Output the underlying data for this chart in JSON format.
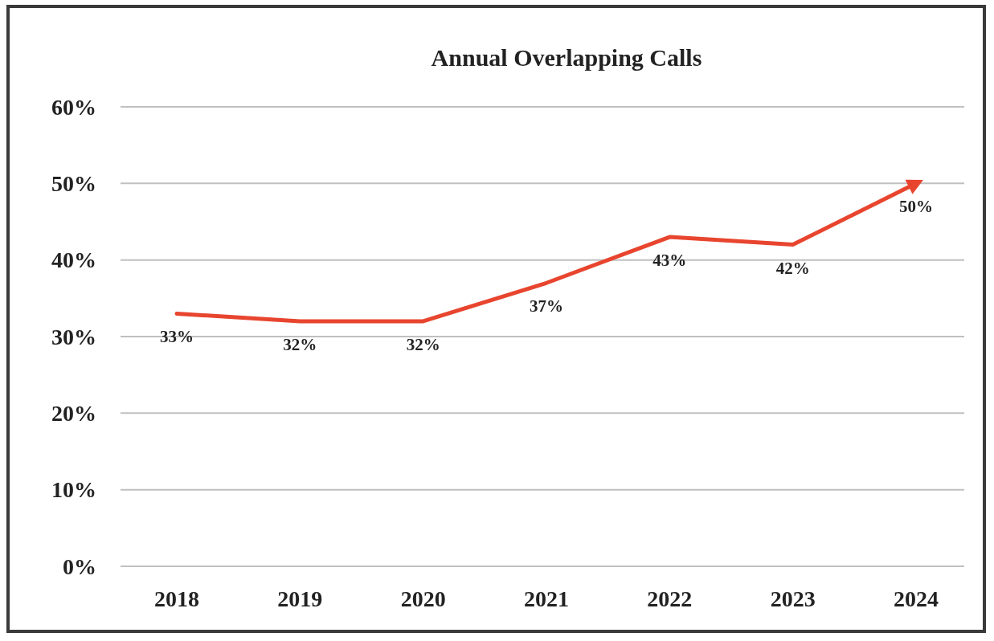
{
  "chart_data": {
    "type": "line",
    "title": "Annual Overlapping Calls",
    "categories": [
      "2018",
      "2019",
      "2020",
      "2021",
      "2022",
      "2023",
      "2024"
    ],
    "series": [
      {
        "color": "#e8452f",
        "values": [
          33,
          32,
          32,
          37,
          43,
          42,
          50
        ]
      }
    ],
    "ylim": [
      0,
      60
    ],
    "yticks": [
      {
        "value": 0,
        "label": "0%"
      },
      {
        "value": 10,
        "label": "10%"
      },
      {
        "value": 20,
        "label": "20%"
      },
      {
        "value": 30,
        "label": "30%"
      },
      {
        "value": 40,
        "label": "40%"
      },
      {
        "value": 50,
        "label": "50%"
      },
      {
        "value": 60,
        "label": "60%"
      }
    ],
    "value_labels": [
      "33%",
      "32%",
      "32%",
      "37%",
      "43%",
      "42%",
      "50%"
    ],
    "grid": "y",
    "marker": "none",
    "line_style": "solid"
  }
}
